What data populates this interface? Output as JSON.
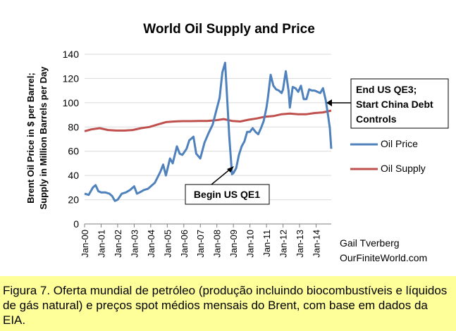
{
  "chart_data": {
    "type": "line",
    "title": "World Oil Supply and Price",
    "ylabel_line1": "Brent Oil Price in $ per Barrel;",
    "ylabel_line2": "Supply in Million Barrels per Day",
    "ylim": [
      0,
      140
    ],
    "yticks": [
      0,
      20,
      40,
      60,
      80,
      100,
      120,
      140
    ],
    "xlim": [
      "2000-01",
      "2014-12"
    ],
    "xtick_labels": [
      "Jan-00",
      "Jan-01",
      "Jan-02",
      "Jan-03",
      "Jan-04",
      "Jan-05",
      "Jan-06",
      "Jan-07",
      "Jan-08",
      "Jan-09",
      "Jan-10",
      "Jan-11",
      "Jan-12",
      "Jan-13",
      "Jan-14"
    ],
    "grid": "horizontal",
    "legend_placement": "right",
    "series": [
      {
        "name": "Oil Price",
        "color": "#4f81bd",
        "x": [
          "2000-01",
          "2000-04",
          "2000-07",
          "2000-09",
          "2000-11",
          "2001-01",
          "2001-04",
          "2001-07",
          "2001-09",
          "2001-11",
          "2002-01",
          "2002-04",
          "2002-07",
          "2002-10",
          "2003-01",
          "2003-03",
          "2003-05",
          "2003-08",
          "2003-11",
          "2004-01",
          "2004-04",
          "2004-08",
          "2004-10",
          "2004-12",
          "2005-03",
          "2005-05",
          "2005-08",
          "2005-10",
          "2005-12",
          "2006-03",
          "2006-05",
          "2006-08",
          "2006-10",
          "2007-01",
          "2007-04",
          "2007-07",
          "2007-10",
          "2007-12",
          "2008-03",
          "2008-05",
          "2008-07",
          "2008-08",
          "2008-10",
          "2008-12",
          "2009-01",
          "2009-03",
          "2009-05",
          "2009-07",
          "2009-09",
          "2009-11",
          "2010-01",
          "2010-03",
          "2010-05",
          "2010-07",
          "2010-09",
          "2010-11",
          "2011-01",
          "2011-02",
          "2011-04",
          "2011-06",
          "2011-08",
          "2011-10",
          "2011-12",
          "2012-01",
          "2012-03",
          "2012-05",
          "2012-06",
          "2012-08",
          "2012-10",
          "2012-12",
          "2013-02",
          "2013-04",
          "2013-06",
          "2013-08",
          "2013-10",
          "2013-12",
          "2014-02",
          "2014-04",
          "2014-06",
          "2014-08",
          "2014-10",
          "2014-11",
          "2014-12"
        ],
        "values": [
          25,
          24,
          30,
          32,
          27,
          26,
          26,
          25,
          23,
          19,
          20,
          25,
          26,
          28,
          31,
          25,
          26,
          28,
          29,
          31,
          34,
          43,
          49,
          40,
          54,
          50,
          64,
          58,
          57,
          62,
          69,
          72,
          58,
          54,
          67,
          75,
          82,
          91,
          104,
          125,
          133,
          113,
          72,
          41,
          42,
          46,
          57,
          64,
          68,
          76,
          76,
          79,
          76,
          74,
          79,
          85,
          96,
          104,
          123,
          114,
          111,
          110,
          108,
          111,
          126,
          110,
          96,
          113,
          112,
          109,
          114,
          103,
          103,
          111,
          110,
          110,
          109,
          108,
          112,
          102,
          87,
          79,
          62
        ]
      },
      {
        "name": "Oil Supply",
        "color": "#c0504d",
        "x": [
          "2000-01",
          "2000-06",
          "2000-12",
          "2001-06",
          "2001-12",
          "2002-06",
          "2002-12",
          "2003-06",
          "2003-12",
          "2004-06",
          "2004-12",
          "2005-06",
          "2005-12",
          "2006-06",
          "2006-12",
          "2007-06",
          "2007-12",
          "2008-06",
          "2008-12",
          "2009-06",
          "2009-12",
          "2010-06",
          "2010-12",
          "2011-06",
          "2011-12",
          "2012-06",
          "2012-12",
          "2013-06",
          "2013-12",
          "2014-06",
          "2014-12"
        ],
        "values": [
          76.5,
          78,
          79,
          77.5,
          77,
          77,
          77.5,
          79,
          80,
          82,
          84,
          84.5,
          84.8,
          84.8,
          85,
          85,
          85.5,
          86.5,
          85,
          84.5,
          86,
          87,
          88.5,
          89,
          90.5,
          91,
          90.5,
          90.5,
          91.5,
          92,
          93.5
        ]
      }
    ],
    "annotations": [
      {
        "label": "Begin US QE1",
        "at": "2009-01"
      },
      {
        "label_line1": "End US QE3;",
        "label_line2": "Start China Debt",
        "label_line3": "Controls",
        "at": "2014-10"
      }
    ],
    "credit_line1": "Gail Tverberg",
    "credit_line2": "OurFiniteWorld.com"
  },
  "caption": "Figura 7.  Oferta mundial de petróleo (produção incluindo biocombustíveis e líquidos de gás natural) e preços spot médios mensais do Brent, com base em dados da EIA."
}
